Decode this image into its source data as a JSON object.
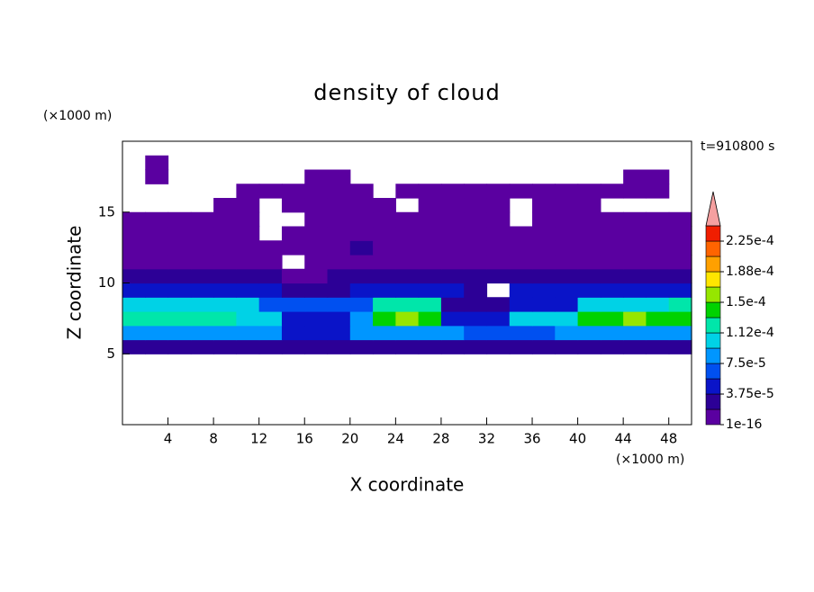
{
  "chart_data": {
    "type": "contour",
    "title": "density of cloud",
    "x_label": "X coordinate",
    "y_label": "Z coordinate",
    "x_unit": "(×1000 m)",
    "y_unit": "(×1000 m)",
    "time_label": "t=910800 s",
    "xlim": [
      0,
      50
    ],
    "ylim": [
      0,
      20
    ],
    "xticks": [
      4,
      8,
      12,
      16,
      20,
      24,
      28,
      32,
      36,
      40,
      44,
      48
    ],
    "yticks": [
      5,
      10,
      15
    ],
    "x_edges": [
      0,
      2,
      4,
      6,
      8,
      10,
      12,
      14,
      16,
      18,
      20,
      22,
      24,
      26,
      28,
      30,
      32,
      34,
      36,
      38,
      40,
      42,
      44,
      46,
      48,
      50
    ],
    "z_edges": [
      5,
      6,
      7,
      8,
      9,
      10,
      11,
      12,
      13,
      14,
      15,
      16,
      17,
      18,
      19
    ],
    "field": [
      [
        2e-05,
        2e-05,
        2e-05,
        2e-05,
        2e-05,
        2e-05,
        2e-05,
        2e-05,
        2e-05,
        2e-05,
        2e-05,
        2e-05,
        2e-05,
        2e-05,
        2e-05,
        2e-05,
        2e-05,
        2e-05,
        2e-05,
        2e-05,
        2e-05,
        2e-05,
        2e-05,
        2e-05,
        2e-05
      ],
      [
        9e-05,
        9e-05,
        9e-05,
        9e-05,
        9e-05,
        9e-05,
        9e-05,
        5e-05,
        5e-05,
        5e-05,
        8e-05,
        8e-05,
        8e-05,
        8e-05,
        8e-05,
        6e-05,
        6e-05,
        6e-05,
        6e-05,
        9e-05,
        9e-05,
        9e-05,
        9e-05,
        9e-05,
        9e-05
      ],
      [
        0.00012,
        0.00012,
        0.00012,
        0.00012,
        0.00012,
        0.0001,
        0.0001,
        4e-05,
        4e-05,
        4e-05,
        8e-05,
        0.00014,
        0.000155,
        0.00014,
        5e-05,
        5e-05,
        5e-05,
        0.0001,
        0.0001,
        0.0001,
        0.00014,
        0.00014,
        0.000155,
        0.00014,
        0.00014
      ],
      [
        0.0001,
        0.0001,
        0.0001,
        0.0001,
        0.0001,
        0.0001,
        6e-05,
        6e-05,
        6e-05,
        6e-05,
        7e-05,
        0.00012,
        0.00012,
        0.00012,
        3e-05,
        3e-05,
        3e-05,
        5e-05,
        5e-05,
        5e-05,
        0.0001,
        0.0001,
        0.0001,
        0.0001,
        0.00012
      ],
      [
        5e-05,
        5e-05,
        5e-05,
        5e-05,
        5e-05,
        5e-05,
        5e-05,
        3e-05,
        3e-05,
        3e-05,
        4e-05,
        4e-05,
        4e-05,
        4e-05,
        4e-05,
        2e-05,
        null,
        4e-05,
        4e-05,
        4e-05,
        4e-05,
        4e-05,
        4e-05,
        4e-05,
        4e-05
      ],
      [
        2.5e-05,
        2.5e-05,
        2.5e-05,
        2.5e-05,
        2.5e-05,
        2.5e-05,
        2.5e-05,
        1e-05,
        1e-05,
        2.5e-05,
        2.5e-05,
        2.5e-05,
        2.5e-05,
        2.5e-05,
        2.5e-05,
        2.5e-05,
        2.5e-05,
        2.5e-05,
        2.5e-05,
        2.5e-05,
        2.5e-05,
        2.5e-05,
        2.5e-05,
        2.5e-05,
        2.5e-05
      ],
      [
        1e-05,
        1e-05,
        1e-05,
        1e-05,
        1e-05,
        1e-05,
        1e-05,
        null,
        1e-05,
        1e-05,
        1e-05,
        1e-05,
        1e-05,
        1e-05,
        1e-05,
        1e-05,
        1e-05,
        1e-05,
        1e-05,
        1e-05,
        1e-05,
        1e-05,
        1e-05,
        1e-05,
        1e-05
      ],
      [
        1e-05,
        1e-05,
        1e-05,
        1e-05,
        1e-05,
        1e-05,
        1e-05,
        1e-05,
        1e-05,
        1e-05,
        2e-05,
        1e-05,
        1e-05,
        1e-05,
        1e-05,
        1e-05,
        1e-05,
        1e-05,
        1e-05,
        1e-05,
        1e-05,
        1e-05,
        1e-05,
        1e-05,
        1e-05
      ],
      [
        1.5e-05,
        1.5e-05,
        1.5e-05,
        1.5e-05,
        1.5e-05,
        1.5e-05,
        null,
        1.5e-05,
        1.5e-05,
        1.5e-05,
        1.5e-05,
        1.5e-05,
        1.5e-05,
        1.5e-05,
        1.5e-05,
        1.5e-05,
        1.5e-05,
        1.5e-05,
        1.5e-05,
        1.5e-05,
        1.5e-05,
        1.5e-05,
        1.5e-05,
        1.5e-05,
        1.5e-05
      ],
      [
        1e-05,
        1e-05,
        1e-05,
        1e-05,
        1e-05,
        1e-05,
        null,
        null,
        1e-05,
        1e-05,
        1e-05,
        1e-05,
        1e-05,
        1e-05,
        1e-05,
        1e-05,
        1e-05,
        null,
        1e-05,
        1e-05,
        1e-05,
        1e-05,
        1e-05,
        1e-05,
        1e-05
      ],
      [
        null,
        null,
        null,
        null,
        1e-05,
        1e-05,
        null,
        1e-05,
        1e-05,
        1e-05,
        1e-05,
        1e-05,
        null,
        1e-05,
        1e-05,
        1e-05,
        1e-05,
        null,
        1e-05,
        1e-05,
        1e-05,
        null,
        null,
        null,
        null
      ],
      [
        null,
        null,
        null,
        null,
        null,
        1e-05,
        1e-05,
        1e-05,
        1e-05,
        1e-05,
        1e-05,
        null,
        1e-05,
        1e-05,
        1e-05,
        1e-05,
        1e-05,
        1e-05,
        1e-05,
        1e-05,
        1e-05,
        1e-05,
        1e-05,
        1e-05,
        null
      ],
      [
        null,
        1e-05,
        null,
        null,
        null,
        null,
        null,
        null,
        1e-05,
        1e-05,
        null,
        null,
        null,
        null,
        null,
        null,
        null,
        null,
        null,
        null,
        null,
        null,
        1e-05,
        1e-05,
        null
      ],
      [
        null,
        1e-05,
        null,
        null,
        null,
        null,
        null,
        null,
        null,
        null,
        null,
        null,
        null,
        null,
        null,
        null,
        null,
        null,
        null,
        null,
        null,
        null,
        null,
        null,
        null
      ]
    ],
    "levels": [
      1e-16,
      1.875e-05,
      3.75e-05,
      5.625e-05,
      7.5e-05,
      9.375e-05,
      0.0001125,
      0.00013125,
      0.00015,
      0.00016875,
      0.0001875,
      0.00020625,
      0.000225,
      0.00024375
    ],
    "colors": [
      "#5a00a0",
      "#2c0096",
      "#0a14c8",
      "#0050f0",
      "#0096ff",
      "#00d2e6",
      "#00e6aa",
      "#00d200",
      "#96e600",
      "#ffe600",
      "#ffa000",
      "#ff6400",
      "#f01e00"
    ],
    "over_color": "#f5a0a0",
    "colorbar_ticks": [
      1e-16,
      {
        "value": 3.75e-05,
        "label": "3.75e-5"
      },
      {
        "value": 7.5e-05,
        "label": "7.5e-5"
      },
      {
        "value": 0.0001125,
        "label": "1.12e-4"
      },
      {
        "value": 0.00015,
        "label": "1.5e-4"
      },
      {
        "value": 0.0001875,
        "label": "1.88e-4"
      },
      {
        "value": 0.000225,
        "label": "2.25e-4"
      }
    ]
  }
}
